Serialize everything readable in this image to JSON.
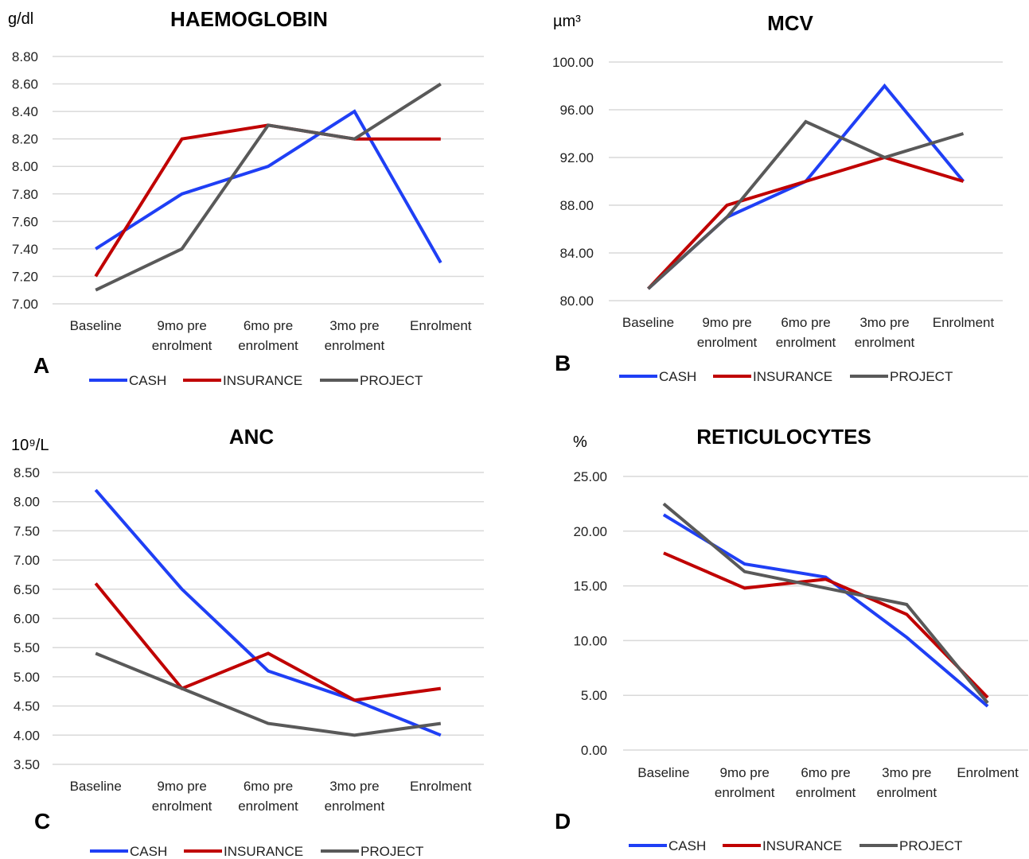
{
  "colors": {
    "CASH": "#1f3ff5",
    "INSURANCE": "#c00000",
    "PROJECT": "#595959"
  },
  "chart_data": [
    {
      "panel": "A",
      "type": "line",
      "title": "HAEMOGLOBIN",
      "ylabel": "g/dl",
      "ylim": [
        7.0,
        8.8
      ],
      "yticks": [
        "7.00",
        "7.20",
        "7.40",
        "7.60",
        "7.80",
        "8.00",
        "8.20",
        "8.40",
        "8.60",
        "8.80"
      ],
      "categories": [
        [
          "Baseline"
        ],
        [
          "9mo pre",
          "enrolment"
        ],
        [
          "6mo pre",
          "enrolment"
        ],
        [
          "3mo pre",
          "enrolment"
        ],
        [
          "Enrolment"
        ]
      ],
      "series": [
        {
          "name": "CASH",
          "values": [
            7.4,
            7.8,
            8.0,
            8.4,
            7.3
          ]
        },
        {
          "name": "INSURANCE",
          "values": [
            7.2,
            8.2,
            8.3,
            8.2,
            8.2
          ]
        },
        {
          "name": "PROJECT",
          "values": [
            7.1,
            7.4,
            8.3,
            8.2,
            8.6
          ]
        }
      ]
    },
    {
      "panel": "B",
      "type": "line",
      "title": "MCV",
      "ylabel": "µm³",
      "ylim": [
        80,
        100
      ],
      "yticks": [
        "80.00",
        "84.00",
        "88.00",
        "92.00",
        "96.00",
        "100.00"
      ],
      "categories": [
        [
          "Baseline"
        ],
        [
          "9mo pre",
          "enrolment"
        ],
        [
          "6mo pre",
          "enrolment"
        ],
        [
          "3mo pre",
          "enrolment"
        ],
        [
          "Enrolment"
        ]
      ],
      "series": [
        {
          "name": "CASH",
          "values": [
            81,
            87,
            90,
            98,
            90
          ]
        },
        {
          "name": "INSURANCE",
          "values": [
            81,
            88,
            90,
            92,
            90
          ]
        },
        {
          "name": "PROJECT",
          "values": [
            81,
            87,
            95,
            92,
            94
          ]
        }
      ]
    },
    {
      "panel": "C",
      "type": "line",
      "title": "ANC",
      "ylabel": "10⁹/L",
      "ylim": [
        3.5,
        8.5
      ],
      "yticks": [
        "3.50",
        "4.00",
        "4.50",
        "5.00",
        "5.50",
        "6.00",
        "6.50",
        "7.00",
        "7.50",
        "8.00",
        "8.50"
      ],
      "categories": [
        [
          "Baseline"
        ],
        [
          "9mo pre",
          "enrolment"
        ],
        [
          "6mo pre",
          "enrolment"
        ],
        [
          "3mo pre",
          "enrolment"
        ],
        [
          "Enrolment"
        ]
      ],
      "series": [
        {
          "name": "CASH",
          "values": [
            8.2,
            6.5,
            5.1,
            4.6,
            4.0
          ]
        },
        {
          "name": "INSURANCE",
          "values": [
            6.6,
            4.8,
            5.4,
            4.6,
            4.8
          ]
        },
        {
          "name": "PROJECT",
          "values": [
            5.4,
            4.8,
            4.2,
            4.0,
            4.2
          ]
        }
      ]
    },
    {
      "panel": "D",
      "type": "line",
      "title": "RETICULOCYTES",
      "ylabel": "%",
      "ylim": [
        0,
        25
      ],
      "yticks": [
        "0.00",
        "5.00",
        "10.00",
        "15.00",
        "20.00",
        "25.00"
      ],
      "categories": [
        [
          "Baseline"
        ],
        [
          "9mo pre",
          "enrolment"
        ],
        [
          "6mo pre",
          "enrolment"
        ],
        [
          "3mo pre",
          "enrolment"
        ],
        [
          "Enrolment"
        ]
      ],
      "series": [
        {
          "name": "CASH",
          "values": [
            21.5,
            17.0,
            15.8,
            10.3,
            4.0
          ]
        },
        {
          "name": "INSURANCE",
          "values": [
            18.0,
            14.8,
            15.6,
            12.4,
            4.8
          ]
        },
        {
          "name": "PROJECT",
          "values": [
            22.5,
            16.3,
            14.8,
            13.3,
            4.3
          ]
        }
      ]
    }
  ]
}
